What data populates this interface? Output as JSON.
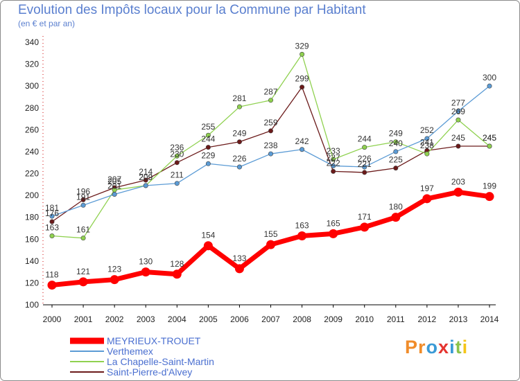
{
  "header": {
    "title": "Evolution des Impôts locaux pour la Commune par Habitant",
    "subtitle": "(en € et par an)"
  },
  "brand": {
    "letters": [
      "P",
      "r",
      "o",
      "x",
      "i",
      "t",
      "i"
    ],
    "colors": [
      "#f08c2a",
      "#f08c2a",
      "#3a9ad6",
      "#e5342f",
      "#3a9ad6",
      "#8bc34a",
      "#f5c518"
    ]
  },
  "chart_data": {
    "type": "line",
    "title": "Evolution des Impôts locaux pour la Commune par Habitant",
    "subtitle": "(en € et par an)",
    "xlabel": "",
    "ylabel": "",
    "x": [
      "2000",
      "2001",
      "2002",
      "2003",
      "2004",
      "2005",
      "2006",
      "2007",
      "2008",
      "2009",
      "2010",
      "2011",
      "2012",
      "2013",
      "2014"
    ],
    "ylim": [
      100,
      340
    ],
    "yticks": [
      100,
      120,
      140,
      160,
      180,
      200,
      220,
      240,
      260,
      280,
      300,
      320,
      340
    ],
    "grid": false,
    "legend_position": "bottom-left",
    "series": [
      {
        "name": "MEYRIEUX-TROUET",
        "color": "#ff0000",
        "values": [
          118,
          121,
          123,
          130,
          128,
          154,
          133,
          155,
          163,
          165,
          171,
          180,
          197,
          203,
          199
        ]
      },
      {
        "name": "Verthemex",
        "color": "#5b9bd5",
        "values": [
          181,
          191,
          201,
          209,
          211,
          229,
          226,
          238,
          242,
          227,
          226,
          240,
          252,
          277,
          300
        ]
      },
      {
        "name": "La Chapelle-Saint-Martin",
        "color": "#8fd14f",
        "values": [
          163,
          161,
          205,
          209,
          236,
          255,
          281,
          287,
          329,
          233,
          244,
          249,
          238,
          269,
          245
        ]
      },
      {
        "name": "Saint-Pierre-d'Alvey",
        "color": "#6b1a1a",
        "values": [
          176,
          196,
          207,
          214,
          230,
          244,
          249,
          259,
          299,
          222,
          221,
          225,
          241,
          245,
          245
        ]
      }
    ]
  }
}
